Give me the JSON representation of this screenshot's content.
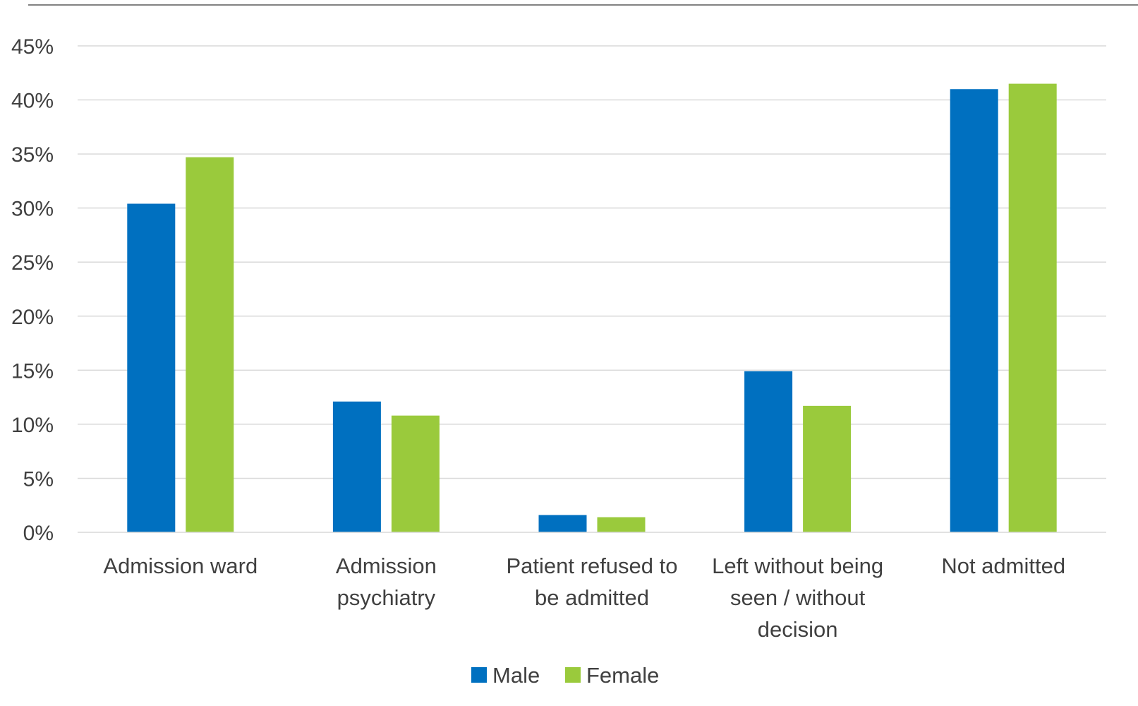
{
  "chart_data": {
    "type": "bar",
    "title": "",
    "xlabel": "",
    "ylabel": "",
    "ylim": [
      0,
      45
    ],
    "y_ticks": [
      "0%",
      "5%",
      "10%",
      "15%",
      "20%",
      "25%",
      "30%",
      "35%",
      "40%",
      "45%"
    ],
    "y_tick_values": [
      0,
      5,
      10,
      15,
      20,
      25,
      30,
      35,
      40,
      45
    ],
    "categories": [
      [
        "Admission ward"
      ],
      [
        "Admission",
        "psychiatry"
      ],
      [
        "Patient refused to",
        "be admitted"
      ],
      [
        "Left without being",
        "seen / without",
        "decision"
      ],
      [
        "Not admitted"
      ]
    ],
    "series": [
      {
        "name": "Male",
        "color": "#0070C0",
        "values": [
          30.4,
          12.1,
          1.6,
          14.9,
          41.0
        ]
      },
      {
        "name": "Female",
        "color": "#9ACA3C",
        "values": [
          34.7,
          10.8,
          1.4,
          11.7,
          41.5
        ]
      }
    ],
    "grid": true,
    "legend_position": "bottom"
  }
}
